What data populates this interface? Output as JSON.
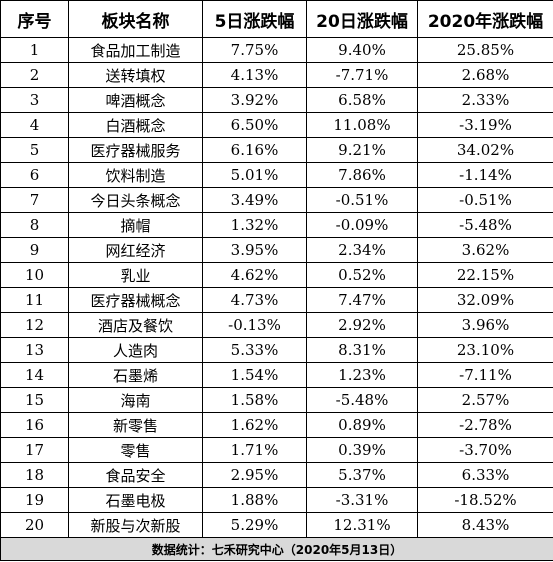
{
  "table": {
    "headers": [
      "序号",
      "板块名称",
      "5日涨跌幅",
      "20日涨跌幅",
      "2020年涨跌幅"
    ],
    "rows": [
      [
        "1",
        "食品加工制造",
        "7.75%",
        "9.40%",
        "25.85%"
      ],
      [
        "2",
        "送转填权",
        "4.13%",
        "-7.71%",
        "2.68%"
      ],
      [
        "3",
        "啤酒概念",
        "3.92%",
        "6.58%",
        "2.33%"
      ],
      [
        "4",
        "白酒概念",
        "6.50%",
        "11.08%",
        "-3.19%"
      ],
      [
        "5",
        "医疗器械服务",
        "6.16%",
        "9.21%",
        "34.02%"
      ],
      [
        "6",
        "饮料制造",
        "5.01%",
        "7.86%",
        "-1.14%"
      ],
      [
        "7",
        "今日头条概念",
        "3.49%",
        "-0.51%",
        "-0.51%"
      ],
      [
        "8",
        "摘帽",
        "1.32%",
        "-0.09%",
        "-5.48%"
      ],
      [
        "9",
        "网红经济",
        "3.95%",
        "2.34%",
        "3.62%"
      ],
      [
        "10",
        "乳业",
        "4.62%",
        "0.52%",
        "22.15%"
      ],
      [
        "11",
        "医疗器械概念",
        "4.73%",
        "7.47%",
        "32.09%"
      ],
      [
        "12",
        "酒店及餐饮",
        "-0.13%",
        "2.92%",
        "3.96%"
      ],
      [
        "13",
        "人造肉",
        "5.33%",
        "8.31%",
        "23.10%"
      ],
      [
        "14",
        "石墨烯",
        "1.54%",
        "1.23%",
        "-7.11%"
      ],
      [
        "15",
        "海南",
        "1.58%",
        "-5.48%",
        "2.57%"
      ],
      [
        "16",
        "新零售",
        "1.62%",
        "0.89%",
        "-2.78%"
      ],
      [
        "17",
        "零售",
        "1.71%",
        "0.39%",
        "-3.70%"
      ],
      [
        "18",
        "食品安全",
        "2.95%",
        "5.37%",
        "6.33%"
      ],
      [
        "19",
        "石墨电极",
        "1.88%",
        "-3.31%",
        "-18.52%"
      ],
      [
        "20",
        "新股与次新股",
        "5.29%",
        "12.31%",
        "8.43%"
      ]
    ],
    "footer": "数据统计：七禾研究中心（2020年5月13日）"
  }
}
